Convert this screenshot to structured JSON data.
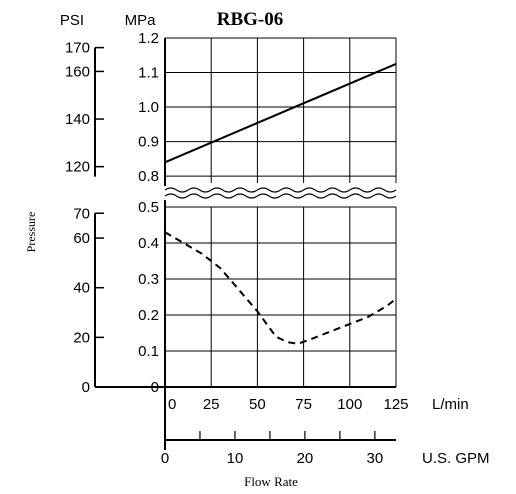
{
  "chart_data": {
    "type": "line",
    "title": "RBG-06",
    "ylabel": "Pressure",
    "xlabel": "Flow Rate",
    "grid": true,
    "x_primary": {
      "unit": "L/min",
      "ticks": [
        0,
        25,
        50,
        75,
        100,
        125
      ],
      "tick_labels": [
        "0",
        "25",
        "50",
        "75",
        "100",
        "125"
      ],
      "range": [
        0,
        125
      ]
    },
    "x_secondary": {
      "unit": "U.S. GPM",
      "ticks": [
        0,
        10,
        20,
        30
      ],
      "tick_labels": [
        "0",
        "10",
        "20",
        "30"
      ]
    },
    "y_mpa": {
      "unit": "MPa",
      "upper": {
        "range": [
          0.78,
          1.2
        ],
        "ticks": [
          0.8,
          0.9,
          1.0,
          1.1,
          1.2
        ],
        "tick_labels": [
          "0.8",
          "0.9",
          "1.0",
          "1.1",
          "1.2"
        ]
      },
      "lower": {
        "range": [
          0,
          0.5
        ],
        "ticks": [
          0,
          0.1,
          0.2,
          0.3,
          0.4,
          0.5
        ],
        "tick_labels": [
          "0",
          "0.1",
          "0.2",
          "0.3",
          "0.4",
          "0.5"
        ]
      }
    },
    "y_psi": {
      "unit": "PSI",
      "upper": {
        "ticks": [
          120,
          140,
          160,
          170
        ],
        "tick_labels": [
          "120",
          "140",
          "160",
          "170"
        ]
      },
      "lower": {
        "ticks": [
          0,
          20,
          40,
          60,
          70
        ],
        "tick_labels": [
          "0",
          "20",
          "40",
          "60",
          "70"
        ]
      }
    },
    "series": [
      {
        "style": "solid",
        "points": [
          [
            0,
            0.84
          ],
          [
            125,
            1.125
          ]
        ]
      },
      {
        "style": "dashed",
        "points": [
          [
            0,
            0.43
          ],
          [
            10,
            0.4
          ],
          [
            20,
            0.37
          ],
          [
            30,
            0.33
          ],
          [
            40,
            0.27
          ],
          [
            50,
            0.21
          ],
          [
            60,
            0.14
          ],
          [
            66,
            0.125
          ],
          [
            72,
            0.12
          ],
          [
            80,
            0.135
          ],
          [
            90,
            0.155
          ],
          [
            100,
            0.175
          ],
          [
            110,
            0.195
          ],
          [
            120,
            0.225
          ],
          [
            125,
            0.245
          ]
        ]
      }
    ]
  }
}
